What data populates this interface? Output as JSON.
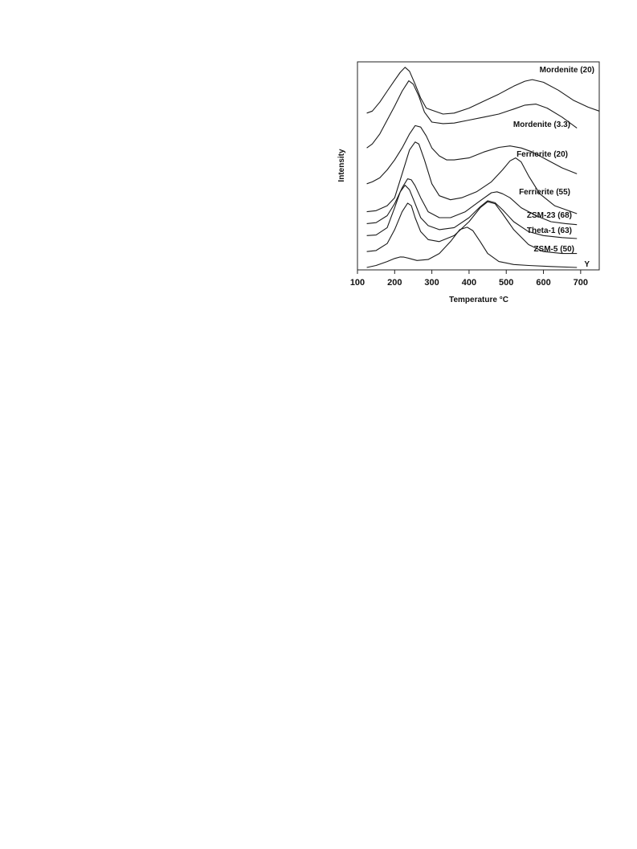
{
  "chart_data": {
    "type": "line",
    "title": "",
    "xlabel": "Temperature °C",
    "ylabel": "Intensity",
    "xlim": [
      100,
      750
    ],
    "ylim": [
      0,
      100
    ],
    "x_ticks": [
      100,
      200,
      300,
      400,
      500,
      600,
      700
    ],
    "y_ticks": [],
    "grid": false,
    "legend": "none (labels placed beside each curve)",
    "line_color": "#1a1a1a",
    "series": [
      {
        "name": "Mordenite (20)",
        "x": [
          125,
          140,
          160,
          180,
          200,
          215,
          228,
          240,
          255,
          270,
          285,
          300,
          330,
          360,
          400,
          440,
          480,
          520,
          550,
          570,
          600,
          640,
          680,
          720,
          750
        ],
        "y": [
          77.5,
          78.5,
          83,
          88.5,
          94,
          98,
          100.5,
          98.5,
          92,
          85,
          80,
          79,
          77,
          77.5,
          80,
          83.5,
          87,
          91,
          93.5,
          94.3,
          93,
          89,
          84,
          80.5,
          78.5
        ]
      },
      {
        "name": "Mordenite (3.3)",
        "x": [
          125,
          140,
          160,
          180,
          200,
          220,
          238,
          250,
          265,
          280,
          300,
          330,
          360,
          400,
          440,
          480,
          520,
          550,
          580,
          610,
          650,
          690
        ],
        "y": [
          60,
          62,
          67,
          74,
          81,
          88.5,
          93.7,
          92,
          86,
          78,
          73,
          72.2,
          72.5,
          74,
          75.5,
          77,
          79.5,
          81.5,
          82,
          80,
          75.5,
          70
        ]
      },
      {
        "name": "Ferrierite (20)",
        "x": [
          125,
          140,
          160,
          180,
          200,
          220,
          240,
          255,
          270,
          285,
          300,
          320,
          340,
          360,
          400,
          440,
          480,
          510,
          540,
          570,
          610,
          650,
          690
        ],
        "y": [
          42,
          43,
          45,
          49,
          54,
          60,
          67,
          71.2,
          70.5,
          66,
          60,
          56,
          54,
          54,
          55,
          58,
          60.3,
          61,
          60,
          58,
          54,
          50,
          47
        ]
      },
      {
        "name": "Ferrierite (55)",
        "x": [
          125,
          150,
          180,
          200,
          220,
          240,
          255,
          265,
          280,
          300,
          320,
          350,
          380,
          420,
          460,
          490,
          510,
          525,
          540,
          560,
          590,
          630,
          690
        ],
        "y": [
          28,
          28.5,
          31,
          35,
          47,
          59,
          63,
          62,
          54,
          42,
          36,
          34,
          35,
          38,
          43,
          49,
          53.5,
          55,
          53,
          46,
          37,
          31,
          27
        ]
      },
      {
        "name": "ZSM-23 (68)",
        "x": [
          125,
          150,
          180,
          200,
          220,
          235,
          245,
          255,
          270,
          290,
          320,
          350,
          390,
          430,
          460,
          475,
          490,
          510,
          540,
          580,
          620,
          660,
          690
        ],
        "y": [
          22,
          22.5,
          26,
          32,
          40,
          44.5,
          44,
          41,
          35,
          28,
          25,
          25,
          28,
          33.5,
          37.5,
          38,
          37,
          35,
          30,
          26,
          23,
          22,
          21.5
        ]
      },
      {
        "name": "Theta-1 (63)",
        "x": [
          125,
          150,
          180,
          200,
          215,
          228,
          240,
          255,
          270,
          290,
          320,
          360,
          400,
          430,
          450,
          470,
          490,
          520,
          560,
          600,
          650,
          690
        ],
        "y": [
          16,
          16.3,
          20,
          30,
          38,
          41.3,
          39,
          32,
          25,
          21,
          19,
          20,
          25,
          30.5,
          33.5,
          32.5,
          29,
          23,
          18,
          16,
          15,
          14.5
        ]
      },
      {
        "name": "ZSM-5 (50)",
        "x": [
          125,
          150,
          180,
          200,
          220,
          235,
          245,
          255,
          270,
          290,
          320,
          360,
          400,
          430,
          450,
          470,
          490,
          520,
          560,
          600,
          650,
          690
        ],
        "y": [
          8,
          8.5,
          12,
          19,
          28,
          32.3,
          31,
          25,
          18,
          14,
          13,
          16,
          23,
          30,
          33,
          32,
          27,
          19,
          11.5,
          8,
          7,
          7
        ]
      },
      {
        "name": "Y",
        "x": [
          125,
          150,
          180,
          200,
          215,
          225,
          240,
          260,
          290,
          320,
          350,
          375,
          395,
          410,
          430,
          450,
          480,
          520,
          560,
          620,
          690
        ],
        "y": [
          0,
          1,
          3,
          4.5,
          5.3,
          5.2,
          4.5,
          3.5,
          4,
          7,
          13,
          19,
          20.2,
          18.5,
          13,
          7,
          3,
          1.5,
          1,
          0.5,
          0
        ]
      }
    ]
  }
}
